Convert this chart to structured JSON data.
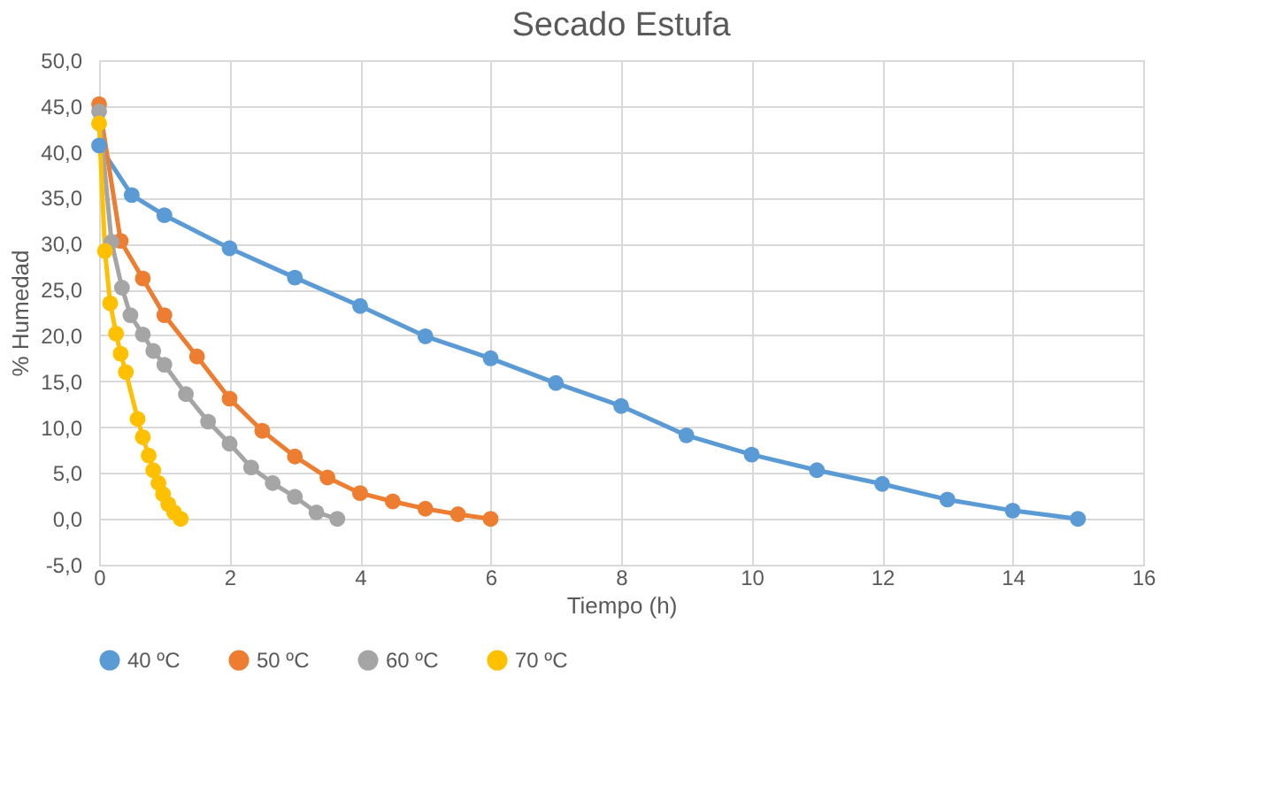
{
  "chart_data": {
    "type": "line",
    "title": "Secado Estufa",
    "xlabel": "Tiempo (h)",
    "ylabel": "% Humedad",
    "xlim": [
      0,
      16
    ],
    "xticks": [
      0,
      2,
      4,
      6,
      8,
      10,
      12,
      14,
      16
    ],
    "ylim": [
      -5,
      50
    ],
    "yticks": [
      {
        "value": -5,
        "label": "-5,0"
      },
      {
        "value": 0,
        "label": "0,0"
      },
      {
        "value": 5,
        "label": "5,0"
      },
      {
        "value": 10,
        "label": "10,0"
      },
      {
        "value": 15,
        "label": "15,0"
      },
      {
        "value": 20,
        "label": "20,0"
      },
      {
        "value": 25,
        "label": "25,0"
      },
      {
        "value": 30,
        "label": "30,0"
      },
      {
        "value": 35,
        "label": "35,0"
      },
      {
        "value": 40,
        "label": "40,0"
      },
      {
        "value": 45,
        "label": "45,0"
      },
      {
        "value": 50,
        "label": "50,0"
      }
    ],
    "grid": true,
    "legend": "bottom",
    "marker": "circle",
    "line_style": "solid",
    "series": [
      {
        "name": "40 ºC",
        "color": "#5b9bd5",
        "x": [
          0,
          0.5,
          1,
          2,
          3,
          4,
          5,
          6,
          7,
          8,
          9,
          10,
          11,
          12,
          13,
          14,
          15
        ],
        "values": [
          40.7,
          35.3,
          33.1,
          29.5,
          26.3,
          23.2,
          19.9,
          17.5,
          14.8,
          12.3,
          9.1,
          7.0,
          5.3,
          3.8,
          2.1,
          0.9,
          0
        ]
      },
      {
        "name": "50 ºC",
        "color": "#ed7d31",
        "x": [
          0,
          0.33,
          0.67,
          1,
          1.5,
          2,
          2.5,
          3,
          3.5,
          4,
          4.5,
          5,
          5.5,
          6
        ],
        "values": [
          45.2,
          30.3,
          26.2,
          22.2,
          17.7,
          13.1,
          9.6,
          6.8,
          4.5,
          2.8,
          1.9,
          1.1,
          0.5,
          0
        ]
      },
      {
        "name": "60 ºC",
        "color": "#a5a5a5",
        "x": [
          0,
          0.19,
          0.35,
          0.48,
          0.67,
          0.83,
          1,
          1.33,
          1.67,
          2,
          2.33,
          2.66,
          3,
          3.33,
          3.65
        ],
        "values": [
          44.4,
          30.2,
          25.2,
          22.2,
          20.1,
          18.3,
          16.8,
          13.6,
          10.6,
          8.2,
          5.6,
          3.9,
          2.4,
          0.7,
          0
        ]
      },
      {
        "name": "70 ºC",
        "color": "#ffc000",
        "x": [
          0,
          0.09,
          0.17,
          0.26,
          0.33,
          0.41,
          0.59,
          0.67,
          0.76,
          0.83,
          0.91,
          0.98,
          1.06,
          1.15,
          1.25
        ],
        "values": [
          43.1,
          29.2,
          23.5,
          20.2,
          18.0,
          16.0,
          10.9,
          8.9,
          6.9,
          5.3,
          3.9,
          2.7,
          1.6,
          0.7,
          0
        ]
      }
    ]
  }
}
